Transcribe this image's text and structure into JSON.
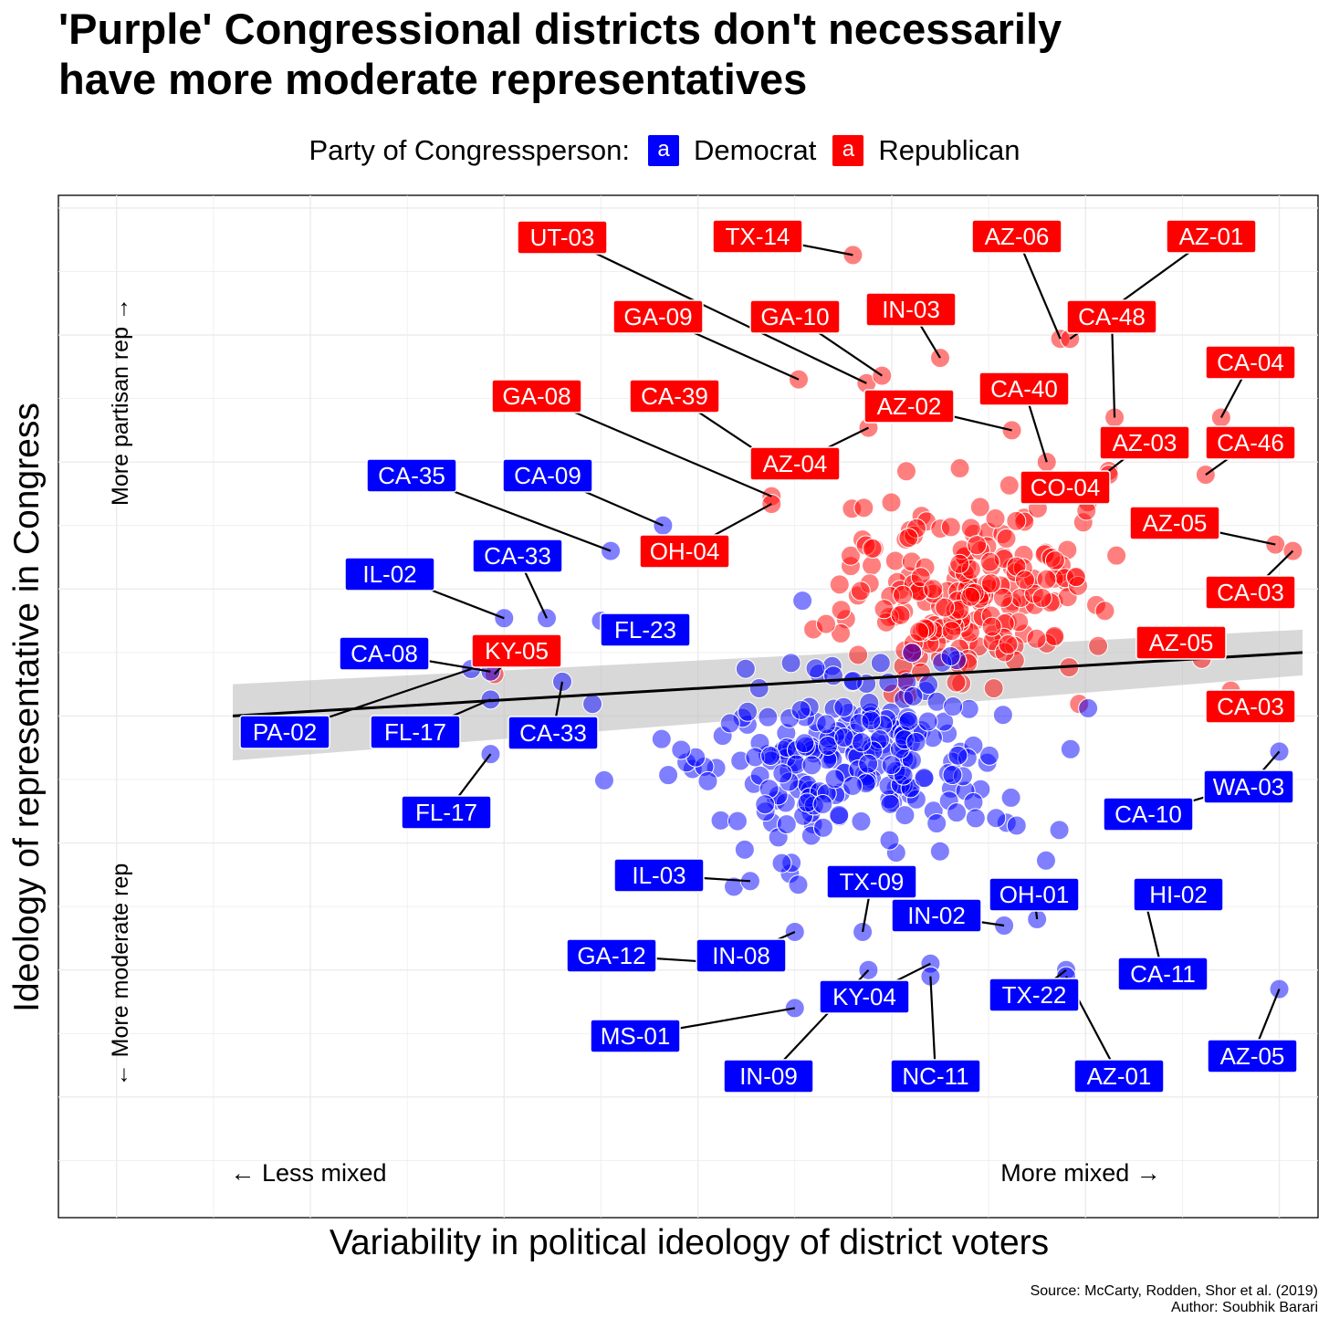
{
  "title_lines": [
    "'Purple' Congressional districts don't necessarily",
    "have more moderate representatives"
  ],
  "legend": {
    "title": "Party of Congressperson:",
    "key_glyph": "a",
    "items": [
      {
        "label": "Democrat",
        "color": "#0000ff"
      },
      {
        "label": "Republican",
        "color": "#ff0000"
      }
    ]
  },
  "annotations": {
    "more_partisan": "More partisan rep →",
    "more_moderate": "← More moderate rep",
    "less_mixed": "← Less mixed",
    "more_mixed": "More mixed →"
  },
  "source_lines": [
    "Source: McCarty, Rodden, Shor et al. (2019)",
    "Author: Soubhik Barari"
  ],
  "chart_data": {
    "type": "scatter",
    "title": "'Purple' Congressional districts don't necessarily have more moderate representatives",
    "xlabel": "Variability in political ideology of district voters",
    "ylabel": "Ideology of representative in Congress",
    "xlim": [
      -0.3,
      6.2
    ],
    "ylim": [
      -0.95,
      7.1
    ],
    "grid": true,
    "legend_position": "top",
    "colors": {
      "Democrat": "#0000ff",
      "Republican": "#ff0000",
      "trend": "#000000",
      "band": "#bebebe"
    },
    "trend_line": {
      "x": [
        0.6,
        6.12
      ],
      "y": [
        3.0,
        3.5
      ]
    },
    "trend_band": {
      "x": [
        0.6,
        6.12
      ],
      "upper": [
        3.25,
        3.68
      ],
      "lower": [
        2.65,
        3.32
      ]
    },
    "labeled_points": [
      {
        "label": "UT-03",
        "party": "Republican",
        "x": 3.87,
        "y": 5.62
      },
      {
        "label": "TX-14",
        "party": "Republican",
        "x": 3.8,
        "y": 6.63
      },
      {
        "label": "AZ-06",
        "party": "Republican",
        "x": 4.87,
        "y": 5.97
      },
      {
        "label": "AZ-01",
        "party": "Republican",
        "x": 4.92,
        "y": 5.97
      },
      {
        "label": "GA-09",
        "party": "Republican",
        "x": 3.52,
        "y": 5.65
      },
      {
        "label": "GA-10",
        "party": "Republican",
        "x": 3.95,
        "y": 5.68
      },
      {
        "label": "IN-03",
        "party": "Republican",
        "x": 4.25,
        "y": 5.82
      },
      {
        "label": "CA-48",
        "party": "Republican",
        "x": 5.15,
        "y": 5.35
      },
      {
        "label": "CA-04",
        "party": "Republican",
        "x": 5.7,
        "y": 5.35
      },
      {
        "label": "GA-08",
        "party": "Republican",
        "x": 3.38,
        "y": 4.73
      },
      {
        "label": "CA-39",
        "party": "Republican",
        "x": 3.42,
        "y": 4.97
      },
      {
        "label": "AZ-02",
        "party": "Republican",
        "x": 4.62,
        "y": 5.25
      },
      {
        "label": "CA-40",
        "party": "Republican",
        "x": 4.8,
        "y": 5.0
      },
      {
        "label": "AZ-04",
        "party": "Republican",
        "x": 3.88,
        "y": 5.27
      },
      {
        "label": "AZ-03",
        "party": "Republican",
        "x": 5.12,
        "y": 4.93
      },
      {
        "label": "CA-46",
        "party": "Republican",
        "x": 5.62,
        "y": 4.9
      },
      {
        "label": "CO-04",
        "party": "Republican",
        "x": 5.12,
        "y": 4.9
      },
      {
        "label": "AZ-05",
        "party": "Republican",
        "x": 5.98,
        "y": 4.35
      },
      {
        "label": "CA-03",
        "party": "Republican",
        "x": 6.07,
        "y": 4.3
      },
      {
        "label": "OH-04",
        "party": "Republican",
        "x": 3.38,
        "y": 4.67
      },
      {
        "label": "KY-05",
        "party": "Republican",
        "x": 1.95,
        "y": 3.33
      },
      {
        "label": "AZ-05",
        "party": "Republican",
        "x": 5.6,
        "y": 3.45
      },
      {
        "label": "CA-03",
        "party": "Republican",
        "x": 5.75,
        "y": 3.2
      },
      {
        "label": "CA-35",
        "party": "Democrat",
        "x": 2.55,
        "y": 4.3
      },
      {
        "label": "CA-09",
        "party": "Democrat",
        "x": 2.82,
        "y": 4.5
      },
      {
        "label": "CA-33",
        "party": "Democrat",
        "x": 2.22,
        "y": 3.77
      },
      {
        "label": "IL-02",
        "party": "Democrat",
        "x": 2.0,
        "y": 3.77
      },
      {
        "label": "FL-23",
        "party": "Democrat",
        "x": 2.5,
        "y": 3.75
      },
      {
        "label": "CA-08",
        "party": "Democrat",
        "x": 1.93,
        "y": 3.35
      },
      {
        "label": "PA-02",
        "party": "Democrat",
        "x": 1.83,
        "y": 3.37
      },
      {
        "label": "FL-17",
        "party": "Democrat",
        "x": 1.93,
        "y": 3.13
      },
      {
        "label": "CA-33",
        "party": "Democrat",
        "x": 2.3,
        "y": 3.27
      },
      {
        "label": "FL-17",
        "party": "Democrat",
        "x": 1.93,
        "y": 2.7
      },
      {
        "label": "WA-03",
        "party": "Democrat",
        "x": 6.0,
        "y": 2.72
      },
      {
        "label": "CA-10",
        "party": "Democrat",
        "x": 5.7,
        "y": 2.4
      },
      {
        "label": "IL-03",
        "party": "Democrat",
        "x": 3.27,
        "y": 1.7
      },
      {
        "label": "TX-09",
        "party": "Democrat",
        "x": 3.85,
        "y": 1.3
      },
      {
        "label": "OH-01",
        "party": "Democrat",
        "x": 4.75,
        "y": 1.4
      },
      {
        "label": "HI-02",
        "party": "Democrat",
        "x": 5.35,
        "y": 1.65
      },
      {
        "label": "IN-02",
        "party": "Democrat",
        "x": 4.58,
        "y": 1.35
      },
      {
        "label": "GA-12",
        "party": "Democrat",
        "x": 3.2,
        "y": 1.05
      },
      {
        "label": "IN-08",
        "party": "Democrat",
        "x": 3.5,
        "y": 1.3
      },
      {
        "label": "CA-11",
        "party": "Democrat",
        "x": 5.3,
        "y": 1.6
      },
      {
        "label": "KY-04",
        "party": "Democrat",
        "x": 4.2,
        "y": 1.05
      },
      {
        "label": "TX-22",
        "party": "Democrat",
        "x": 4.9,
        "y": 1.0
      },
      {
        "label": "MS-01",
        "party": "Democrat",
        "x": 3.5,
        "y": 0.7
      },
      {
        "label": "IN-09",
        "party": "Democrat",
        "x": 3.88,
        "y": 1.0
      },
      {
        "label": "NC-11",
        "party": "Democrat",
        "x": 4.2,
        "y": 0.95
      },
      {
        "label": "AZ-01",
        "party": "Democrat",
        "x": 4.9,
        "y": 0.95
      },
      {
        "label": "AZ-05",
        "party": "Democrat",
        "x": 6.0,
        "y": 0.85
      }
    ],
    "other_points": {
      "note": "Approximately 430 additional unlabeled district points",
      "Democrat": {
        "x_range": [
          0.6,
          6.1
        ],
        "y_range": [
          0.8,
          4.5
        ],
        "center": [
          3.8,
          2.7
        ]
      },
      "Republican": {
        "x_range": [
          2.7,
          6.1
        ],
        "y_range": [
          1.2,
          5.4
        ],
        "center": [
          4.4,
          4.0
        ]
      }
    }
  }
}
